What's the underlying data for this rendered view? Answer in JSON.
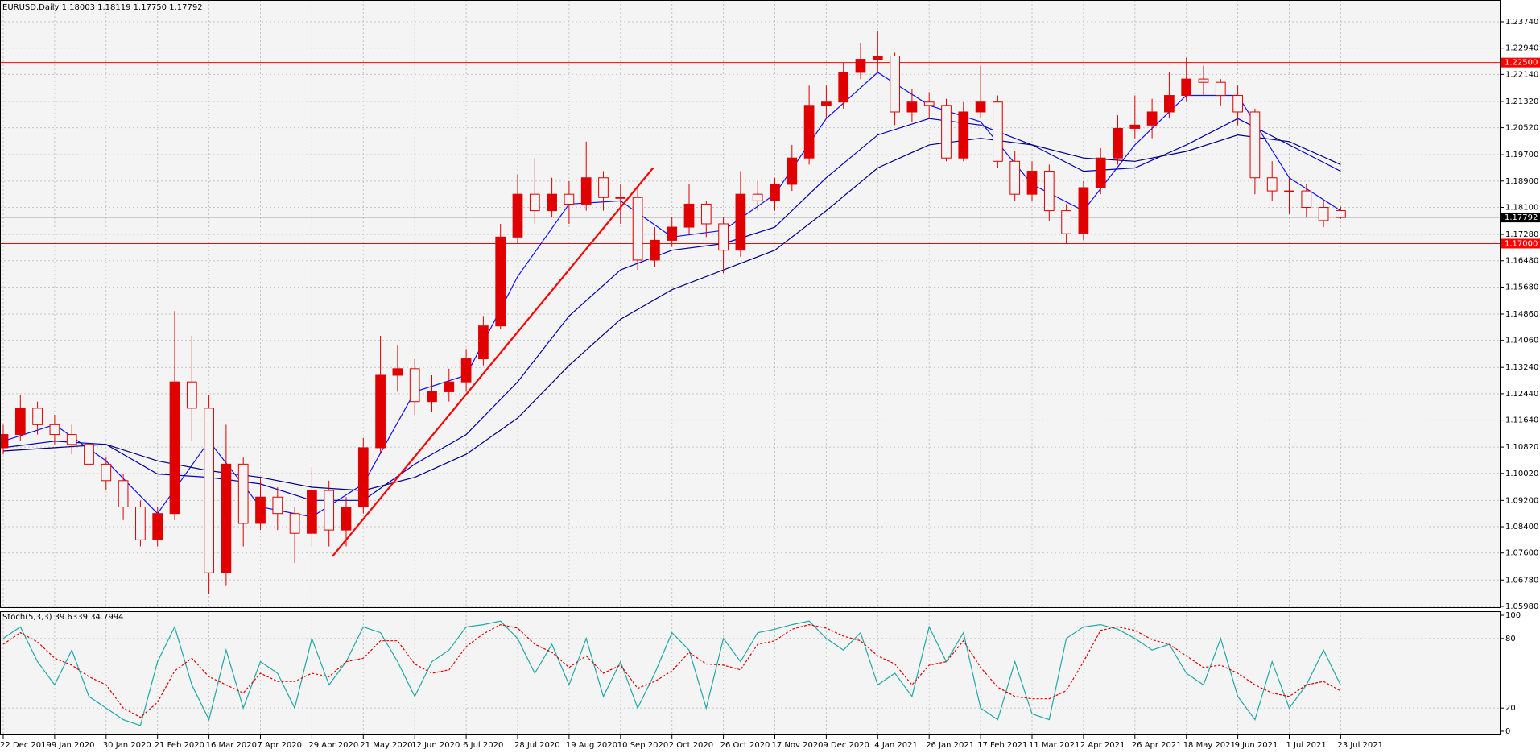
{
  "chart_data": [
    {
      "type": "candlestick",
      "title": "EURUSD,Daily  1.18003 1.18119 1.17750 1.17792",
      "categories": [
        "22 Dec 2019",
        null,
        null,
        "9 Jan 2020",
        null,
        null,
        "30 Jan 2020",
        null,
        null,
        "21 Feb 2020",
        null,
        null,
        "16 Mar 2020",
        null,
        null,
        "7 Apr 2020",
        null,
        null,
        "29 Apr 2020",
        null,
        null,
        "21 May 2020",
        null,
        null,
        "12 Jun 2020",
        null,
        null,
        "6 Jul 2020",
        null,
        null,
        "28 Jul 2020",
        null,
        null,
        "19 Aug 2020",
        null,
        null,
        "10 Sep 2020",
        null,
        null,
        "2 Oct 2020",
        null,
        null,
        "26 Oct 2020",
        null,
        null,
        "17 Nov 2020",
        null,
        null,
        "9 Dec 2020",
        null,
        null,
        "4 Jan 2021",
        null,
        null,
        "26 Jan 2021",
        null,
        null,
        "17 Feb 2021",
        null,
        null,
        "11 Mar 2021",
        null,
        null,
        "2 Apr 2021",
        null,
        null,
        "26 Apr 2021",
        null,
        null,
        "18 May 2021",
        null,
        null,
        "9 Jun 2021",
        null,
        null,
        "1 Jul 2021",
        null,
        null,
        "23 Jul 2021"
      ],
      "open": [
        1.108,
        1.112,
        1.12,
        1.115,
        1.112,
        1.109,
        1.103,
        1.098,
        1.09,
        1.08,
        1.088,
        1.128,
        1.12,
        1.07,
        1.103,
        1.085,
        1.093,
        1.088,
        1.082,
        1.095,
        1.083,
        1.09,
        1.108,
        1.13,
        1.132,
        1.122,
        1.125,
        1.128,
        1.135,
        1.145,
        1.172,
        1.185,
        1.18,
        1.185,
        1.182,
        1.19,
        1.184,
        1.184,
        1.165,
        1.171,
        1.175,
        1.182,
        1.176,
        1.168,
        1.185,
        1.183,
        1.188,
        1.196,
        1.212,
        1.213,
        1.222,
        1.226,
        1.227,
        1.21,
        1.213,
        1.212,
        1.196,
        1.21,
        1.213,
        1.195,
        1.185,
        1.192,
        1.18,
        1.173,
        1.187,
        1.196,
        1.205,
        1.206,
        1.21,
        1.215,
        1.22,
        1.219,
        1.215,
        1.21,
        1.19,
        1.186,
        1.186,
        1.181,
        1.18003
      ],
      "high": [
        1.115,
        1.124,
        1.122,
        1.118,
        1.115,
        1.111,
        1.105,
        1.1,
        1.092,
        1.09,
        1.1495,
        1.142,
        1.124,
        1.115,
        1.105,
        1.099,
        1.096,
        1.09,
        1.102,
        1.098,
        1.093,
        1.111,
        1.142,
        1.139,
        1.135,
        1.13,
        1.132,
        1.138,
        1.148,
        1.176,
        1.191,
        1.196,
        1.19,
        1.189,
        1.201,
        1.192,
        1.188,
        1.187,
        1.175,
        1.178,
        1.188,
        1.183,
        1.178,
        1.192,
        1.189,
        1.19,
        1.2,
        1.218,
        1.218,
        1.225,
        1.231,
        1.2345,
        1.228,
        1.217,
        1.216,
        1.214,
        1.213,
        1.224,
        1.215,
        1.198,
        1.195,
        1.194,
        1.182,
        1.189,
        1.199,
        1.209,
        1.215,
        1.214,
        1.222,
        1.2265,
        1.224,
        1.22,
        1.218,
        1.211,
        1.195,
        1.19,
        1.188,
        1.183,
        1.18119
      ],
      "low": [
        1.106,
        1.11,
        1.112,
        1.109,
        1.106,
        1.1,
        1.095,
        1.086,
        1.078,
        1.078,
        1.086,
        1.11,
        1.0635,
        1.066,
        1.078,
        1.083,
        1.083,
        1.073,
        1.078,
        1.078,
        1.078,
        1.088,
        1.106,
        1.125,
        1.118,
        1.119,
        1.122,
        1.125,
        1.133,
        1.144,
        1.17,
        1.176,
        1.178,
        1.176,
        1.18,
        1.18,
        1.176,
        1.162,
        1.163,
        1.169,
        1.173,
        1.172,
        1.161,
        1.166,
        1.18,
        1.18,
        1.186,
        1.194,
        1.208,
        1.211,
        1.22,
        1.222,
        1.206,
        1.207,
        1.208,
        1.195,
        1.195,
        1.208,
        1.193,
        1.183,
        1.183,
        1.177,
        1.17,
        1.171,
        1.185,
        1.194,
        1.202,
        1.202,
        1.208,
        1.213,
        1.215,
        1.212,
        1.206,
        1.185,
        1.183,
        1.179,
        1.178,
        1.175,
        1.1775
      ],
      "close": [
        1.112,
        1.12,
        1.115,
        1.112,
        1.109,
        1.103,
        1.098,
        1.09,
        1.08,
        1.088,
        1.128,
        1.12,
        1.07,
        1.103,
        1.085,
        1.093,
        1.088,
        1.082,
        1.095,
        1.083,
        1.09,
        1.108,
        1.13,
        1.132,
        1.122,
        1.125,
        1.128,
        1.135,
        1.145,
        1.172,
        1.185,
        1.18,
        1.185,
        1.182,
        1.19,
        1.184,
        1.184,
        1.165,
        1.171,
        1.175,
        1.182,
        1.176,
        1.168,
        1.185,
        1.183,
        1.188,
        1.196,
        1.212,
        1.213,
        1.222,
        1.226,
        1.227,
        1.21,
        1.213,
        1.212,
        1.196,
        1.21,
        1.213,
        1.195,
        1.185,
        1.192,
        1.18,
        1.173,
        1.187,
        1.196,
        1.205,
        1.206,
        1.21,
        1.215,
        1.22,
        1.219,
        1.215,
        1.21,
        1.19,
        1.186,
        1.186,
        1.181,
        1.177,
        1.17792
      ],
      "up_color": "#e00000",
      "down_color": "#f4f4f4",
      "wick_color": "#e00000",
      "ylim": [
        1.0593,
        1.244
      ],
      "yticks": [
        {
          "value": 1.0598,
          "label": "1.05980"
        },
        {
          "value": 1.0678,
          "label": "1.06780"
        },
        {
          "value": 1.076,
          "label": "1.07600"
        },
        {
          "value": 1.084,
          "label": "1.08400"
        },
        {
          "value": 1.092,
          "label": "1.09200"
        },
        {
          "value": 1.1002,
          "label": "1.10020"
        },
        {
          "value": 1.1082,
          "label": "1.10820"
        },
        {
          "value": 1.1164,
          "label": "1.11640"
        },
        {
          "value": 1.1244,
          "label": "1.12440"
        },
        {
          "value": 1.1324,
          "label": "1.13240"
        },
        {
          "value": 1.1406,
          "label": "1.14060"
        },
        {
          "value": 1.1486,
          "label": "1.14860"
        },
        {
          "value": 1.1568,
          "label": "1.15680"
        },
        {
          "value": 1.1648,
          "label": "1.16480"
        },
        {
          "value": 1.1728,
          "label": "1.17280"
        },
        {
          "value": 1.181,
          "label": "1.18100"
        },
        {
          "value": 1.189,
          "label": "1.18900"
        },
        {
          "value": 1.197,
          "label": "1.19700"
        },
        {
          "value": 1.2052,
          "label": "1.20520"
        },
        {
          "value": 1.2132,
          "label": "1.21320"
        },
        {
          "value": 1.2214,
          "label": "1.22140"
        },
        {
          "value": 1.2294,
          "label": "1.22940"
        },
        {
          "value": 1.2374,
          "label": "1.23740"
        }
      ],
      "grid": true,
      "ribbon_x": [
        0,
        3,
        6,
        9,
        12,
        15,
        18,
        21,
        24,
        27,
        30,
        33,
        36,
        39,
        42,
        45,
        48,
        51,
        54,
        57,
        60,
        63,
        66,
        69,
        72,
        75,
        78
      ],
      "ribbon": [
        {
          "color": "#1010ff",
          "values": [
            1.11,
            1.115,
            1.104,
            1.088,
            1.11,
            1.09,
            1.087,
            1.097,
            1.125,
            1.13,
            1.16,
            1.182,
            1.183,
            1.172,
            1.174,
            1.185,
            1.208,
            1.222,
            1.212,
            1.207,
            1.188,
            1.18,
            1.2,
            1.215,
            1.215,
            1.19,
            1.18
          ]
        },
        {
          "color": "#0000b0",
          "values": [
            1.108,
            1.11,
            1.109,
            1.1,
            1.099,
            1.097,
            1.092,
            1.092,
            1.103,
            1.112,
            1.128,
            1.148,
            1.162,
            1.168,
            1.17,
            1.175,
            1.19,
            1.203,
            1.208,
            1.206,
            1.2,
            1.192,
            1.193,
            1.2,
            1.208,
            1.2,
            1.192
          ]
        },
        {
          "color": "#000080",
          "values": [
            1.107,
            1.108,
            1.109,
            1.104,
            1.101,
            1.099,
            1.096,
            1.095,
            1.099,
            1.106,
            1.117,
            1.133,
            1.147,
            1.156,
            1.162,
            1.168,
            1.18,
            1.193,
            1.2,
            1.202,
            1.2,
            1.196,
            1.195,
            1.198,
            1.203,
            1.201,
            1.194
          ]
        }
      ],
      "trendline": {
        "color": "#ff0000",
        "x": [
          19.2,
          37.9
        ],
        "y": [
          1.075,
          1.193
        ]
      },
      "hlines": [
        {
          "value": 1.225,
          "label": "1.22500",
          "color": "#ff0000"
        },
        {
          "value": 1.17,
          "label": "1.17000",
          "color": "#ff0000"
        }
      ],
      "last_price": {
        "value": 1.17792,
        "label": "1.17792"
      }
    },
    {
      "type": "line",
      "title": "Stoch(5,3,3) 39.6339 34.7994",
      "series": [
        {
          "color": "#20a8a8",
          "dash": false,
          "values": [
            80,
            90,
            60,
            40,
            70,
            30,
            20,
            10,
            5,
            60,
            90,
            40,
            10,
            70,
            20,
            60,
            50,
            20,
            80,
            40,
            60,
            90,
            85,
            60,
            30,
            60,
            70,
            90,
            92,
            95,
            80,
            50,
            75,
            40,
            80,
            30,
            60,
            20,
            50,
            85,
            70,
            20,
            80,
            60,
            85,
            88,
            92,
            95,
            80,
            70,
            85,
            40,
            50,
            30,
            90,
            60,
            85,
            20,
            10,
            60,
            15,
            10,
            80,
            90,
            92,
            88,
            80,
            70,
            75,
            50,
            40,
            80,
            30,
            10,
            60,
            20,
            40,
            70,
            39.6339
          ]
        },
        {
          "color": "#e00000",
          "dash": true,
          "values": [
            75,
            85,
            77,
            63,
            57,
            47,
            40,
            20,
            12,
            25,
            52,
            63,
            47,
            40,
            33,
            50,
            43,
            43,
            50,
            47,
            60,
            63,
            78,
            78,
            58,
            50,
            53,
            73,
            84,
            92,
            89,
            75,
            68,
            55,
            65,
            50,
            57,
            37,
            43,
            52,
            68,
            58,
            57,
            53,
            75,
            78,
            88,
            92,
            89,
            82,
            78,
            65,
            58,
            40,
            57,
            60,
            78,
            55,
            38,
            30,
            28,
            28,
            35,
            60,
            87,
            90,
            87,
            79,
            75,
            65,
            55,
            57,
            50,
            40,
            33,
            30,
            40,
            43,
            34.7994
          ]
        }
      ],
      "ylim": [
        -3.5,
        103.5
      ],
      "yticks": [
        0,
        20,
        80,
        100
      ],
      "levels": [
        20,
        80
      ]
    }
  ]
}
